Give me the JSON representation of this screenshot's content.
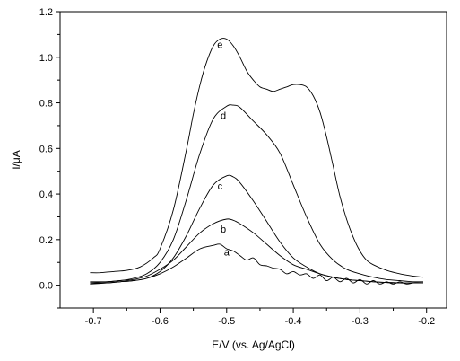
{
  "chart_data": {
    "type": "line",
    "title": "",
    "xlabel": "E/V (vs. Ag/AgCl)",
    "ylabel": "I/μA",
    "xlim": [
      -0.75,
      -0.17
    ],
    "ylim": [
      -0.1,
      1.2
    ],
    "xticks": [
      -0.7,
      -0.6,
      -0.5,
      -0.4,
      -0.3,
      -0.2
    ],
    "xtick_labels": [
      "-0.7",
      "-0.6",
      "-0.5",
      "-0.4",
      "-0.3",
      "-0.2"
    ],
    "yticks": [
      0.0,
      0.2,
      0.4,
      0.6,
      0.8,
      1.0,
      1.2
    ],
    "ytick_labels": [
      "0.0",
      "0.2",
      "0.4",
      "0.6",
      "0.8",
      "1.0",
      "1.2"
    ],
    "grid": false,
    "legend": "none",
    "series": [
      {
        "name": "a",
        "label_at": [
          -0.5,
          0.13
        ],
        "x": [
          -0.705,
          -0.68,
          -0.66,
          -0.64,
          -0.62,
          -0.6,
          -0.58,
          -0.56,
          -0.54,
          -0.52,
          -0.51,
          -0.5,
          -0.49,
          -0.48,
          -0.47,
          -0.46,
          -0.45,
          -0.44,
          -0.43,
          -0.42,
          -0.41,
          -0.4,
          -0.39,
          -0.38,
          -0.37,
          -0.36,
          -0.35,
          -0.34,
          -0.33,
          -0.32,
          -0.31,
          -0.3,
          -0.29,
          -0.28,
          -0.27,
          -0.26,
          -0.25,
          -0.24,
          -0.23,
          -0.22,
          -0.205
        ],
        "y": [
          0.01,
          0.01,
          0.015,
          0.02,
          0.03,
          0.05,
          0.08,
          0.12,
          0.16,
          0.175,
          0.18,
          0.16,
          0.15,
          0.13,
          0.11,
          0.12,
          0.09,
          0.085,
          0.075,
          0.07,
          0.05,
          0.06,
          0.045,
          0.05,
          0.03,
          0.045,
          0.02,
          0.035,
          0.015,
          0.03,
          0.01,
          0.025,
          0.005,
          0.02,
          0.005,
          0.015,
          0.005,
          0.015,
          0.005,
          0.01,
          0.01
        ]
      },
      {
        "name": "b",
        "label_at": [
          -0.505,
          0.23
        ],
        "x": [
          -0.705,
          -0.68,
          -0.66,
          -0.64,
          -0.62,
          -0.6,
          -0.58,
          -0.56,
          -0.54,
          -0.52,
          -0.5,
          -0.49,
          -0.48,
          -0.46,
          -0.44,
          -0.42,
          -0.4,
          -0.38,
          -0.36,
          -0.34,
          -0.32,
          -0.3,
          -0.28,
          -0.26,
          -0.24,
          -0.22,
          -0.205
        ],
        "y": [
          0.015,
          0.015,
          0.02,
          0.025,
          0.04,
          0.07,
          0.11,
          0.17,
          0.23,
          0.27,
          0.29,
          0.285,
          0.27,
          0.23,
          0.18,
          0.13,
          0.09,
          0.07,
          0.05,
          0.035,
          0.025,
          0.02,
          0.015,
          0.012,
          0.01,
          0.01,
          0.01
        ]
      },
      {
        "name": "c",
        "label_at": [
          -0.51,
          0.42
        ],
        "x": [
          -0.705,
          -0.68,
          -0.66,
          -0.64,
          -0.62,
          -0.6,
          -0.58,
          -0.56,
          -0.54,
          -0.52,
          -0.5,
          -0.49,
          -0.48,
          -0.46,
          -0.44,
          -0.42,
          -0.4,
          -0.38,
          -0.36,
          -0.34,
          -0.32,
          -0.3,
          -0.28,
          -0.26,
          -0.24,
          -0.22,
          -0.205
        ],
        "y": [
          0.005,
          0.01,
          0.015,
          0.02,
          0.03,
          0.06,
          0.12,
          0.22,
          0.34,
          0.44,
          0.48,
          0.475,
          0.45,
          0.37,
          0.28,
          0.19,
          0.12,
          0.08,
          0.05,
          0.035,
          0.025,
          0.02,
          0.015,
          0.012,
          0.01,
          0.01,
          0.01
        ]
      },
      {
        "name": "d",
        "label_at": [
          -0.505,
          0.73
        ],
        "x": [
          -0.705,
          -0.68,
          -0.66,
          -0.64,
          -0.62,
          -0.6,
          -0.58,
          -0.56,
          -0.54,
          -0.52,
          -0.5,
          -0.49,
          -0.48,
          -0.46,
          -0.44,
          -0.42,
          -0.4,
          -0.38,
          -0.36,
          -0.34,
          -0.32,
          -0.3,
          -0.28,
          -0.26,
          -0.24,
          -0.22,
          -0.205
        ],
        "y": [
          0.01,
          0.015,
          0.02,
          0.03,
          0.05,
          0.1,
          0.2,
          0.38,
          0.58,
          0.73,
          0.785,
          0.79,
          0.78,
          0.72,
          0.66,
          0.58,
          0.44,
          0.3,
          0.18,
          0.11,
          0.07,
          0.05,
          0.035,
          0.025,
          0.02,
          0.015,
          0.015
        ]
      },
      {
        "name": "e",
        "label_at": [
          -0.51,
          1.04
        ],
        "x": [
          -0.705,
          -0.69,
          -0.67,
          -0.65,
          -0.63,
          -0.61,
          -0.6,
          -0.58,
          -0.56,
          -0.55,
          -0.54,
          -0.53,
          -0.52,
          -0.51,
          -0.5,
          -0.49,
          -0.48,
          -0.47,
          -0.46,
          -0.45,
          -0.44,
          -0.43,
          -0.42,
          -0.41,
          -0.4,
          -0.39,
          -0.38,
          -0.37,
          -0.36,
          -0.35,
          -0.34,
          -0.33,
          -0.32,
          -0.31,
          -0.3,
          -0.29,
          -0.28,
          -0.26,
          -0.24,
          -0.22,
          -0.205
        ],
        "y": [
          0.055,
          0.055,
          0.06,
          0.065,
          0.08,
          0.12,
          0.16,
          0.33,
          0.6,
          0.75,
          0.88,
          0.98,
          1.05,
          1.08,
          1.08,
          1.05,
          1.0,
          0.94,
          0.9,
          0.87,
          0.86,
          0.85,
          0.86,
          0.87,
          0.88,
          0.88,
          0.87,
          0.83,
          0.76,
          0.65,
          0.52,
          0.39,
          0.29,
          0.21,
          0.15,
          0.11,
          0.09,
          0.065,
          0.05,
          0.04,
          0.035
        ]
      }
    ]
  }
}
